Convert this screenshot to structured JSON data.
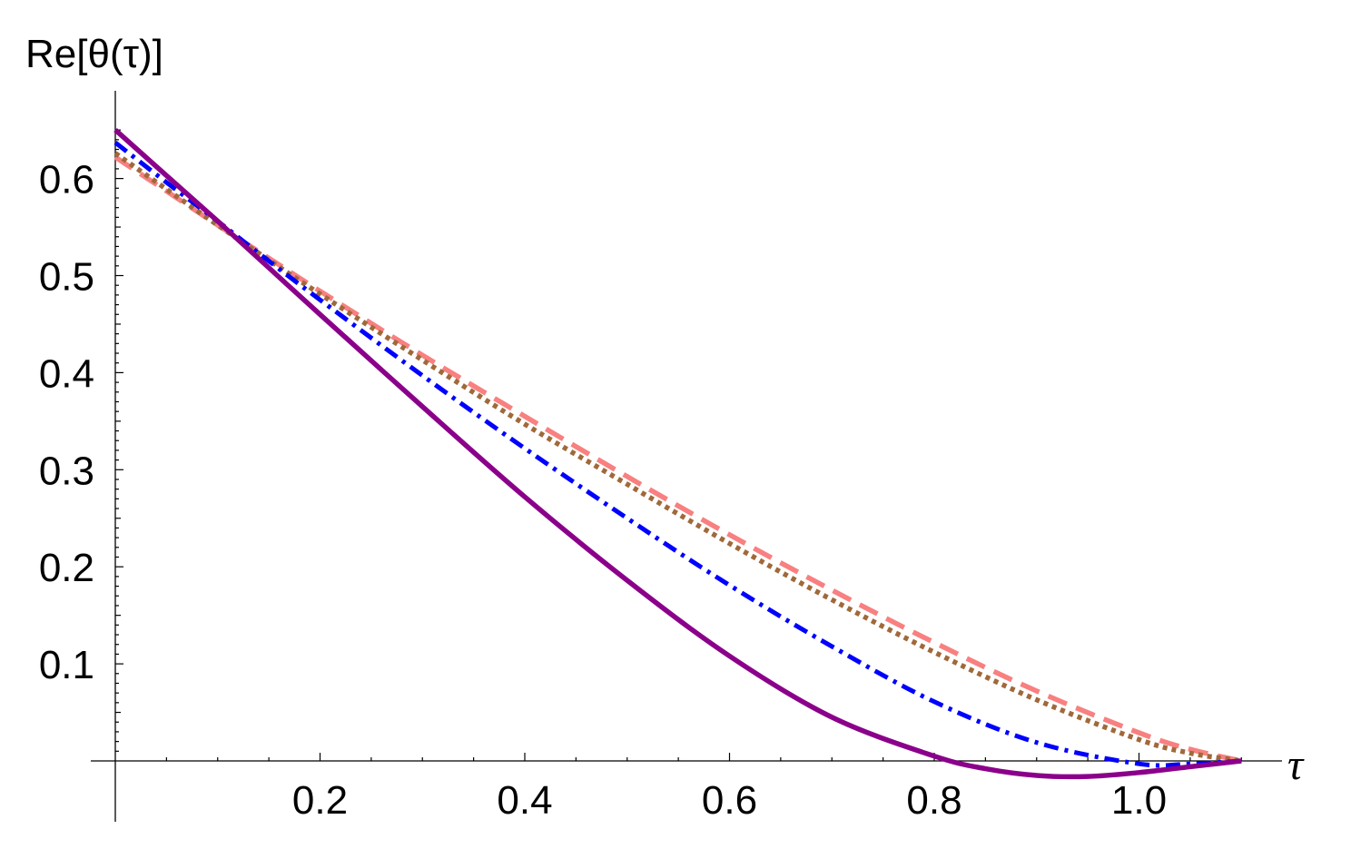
{
  "chart_data": {
    "type": "line",
    "title": "",
    "xlabel": "τ",
    "ylabel": "Re[θ(τ)]",
    "xlim": [
      0.0,
      1.1
    ],
    "ylim": [
      -0.02,
      0.66
    ],
    "x_ticks": [
      {
        "value": 0.2,
        "label": "0.2"
      },
      {
        "value": 0.4,
        "label": "0.4"
      },
      {
        "value": 0.6,
        "label": "0.6"
      },
      {
        "value": 0.8,
        "label": "0.8"
      },
      {
        "value": 1.0,
        "label": "1.0"
      }
    ],
    "y_ticks": [
      {
        "value": 0.1,
        "label": "0.1"
      },
      {
        "value": 0.2,
        "label": "0.2"
      },
      {
        "value": 0.3,
        "label": "0.3"
      },
      {
        "value": 0.4,
        "label": "0.4"
      },
      {
        "value": 0.5,
        "label": "0.5"
      },
      {
        "value": 0.6,
        "label": "0.6"
      }
    ],
    "grid": false,
    "legend": "none",
    "series": [
      {
        "color": "#f88080",
        "style": "dashed",
        "x": [
          0.0,
          0.05,
          0.1,
          0.15,
          0.2,
          0.3,
          0.4,
          0.5,
          0.6,
          0.7,
          0.8,
          0.9,
          1.0,
          1.05,
          1.1
        ],
        "y": [
          0.622,
          0.587,
          0.552,
          0.518,
          0.484,
          0.418,
          0.355,
          0.293,
          0.233,
          0.176,
          0.122,
          0.072,
          0.029,
          0.012,
          0.0
        ]
      },
      {
        "color": "#a0693a",
        "style": "dotted",
        "x": [
          0.0,
          0.05,
          0.1,
          0.15,
          0.2,
          0.3,
          0.4,
          0.5,
          0.6,
          0.7,
          0.8,
          0.9,
          1.0,
          1.05,
          1.1
        ],
        "y": [
          0.626,
          0.589,
          0.552,
          0.516,
          0.481,
          0.413,
          0.347,
          0.285,
          0.224,
          0.166,
          0.112,
          0.063,
          0.022,
          0.008,
          0.0
        ]
      },
      {
        "color": "#0000ff",
        "style": "dash-dot",
        "x": [
          0.0,
          0.05,
          0.1,
          0.15,
          0.2,
          0.3,
          0.4,
          0.5,
          0.6,
          0.7,
          0.8,
          0.9,
          1.0,
          1.05,
          1.1
        ],
        "y": [
          0.637,
          0.596,
          0.556,
          0.515,
          0.475,
          0.397,
          0.322,
          0.25,
          0.181,
          0.118,
          0.061,
          0.019,
          -0.003,
          -0.003,
          0.0
        ]
      },
      {
        "color": "#8b008b",
        "style": "solid",
        "x": [
          0.0,
          0.05,
          0.1,
          0.15,
          0.2,
          0.3,
          0.4,
          0.5,
          0.6,
          0.7,
          0.8,
          0.85,
          0.9,
          0.95,
          1.0,
          1.05,
          1.1
        ],
        "y": [
          0.65,
          0.603,
          0.556,
          0.508,
          0.46,
          0.365,
          0.272,
          0.186,
          0.108,
          0.045,
          0.005,
          -0.008,
          -0.015,
          -0.016,
          -0.012,
          -0.006,
          0.0
        ]
      }
    ]
  }
}
